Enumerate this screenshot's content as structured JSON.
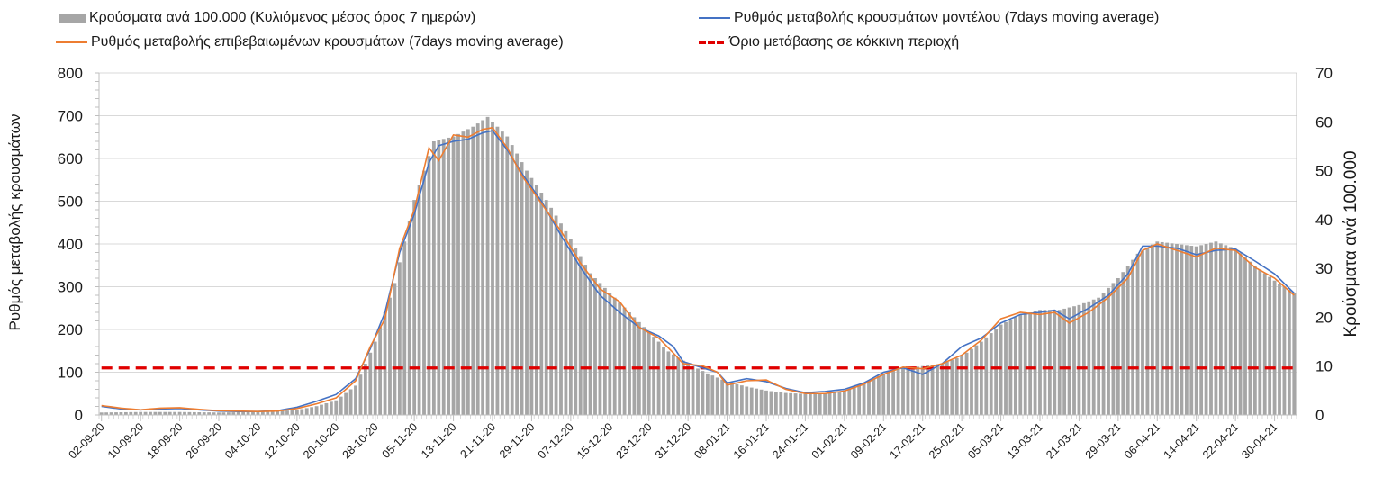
{
  "colors": {
    "bars": "#a6a6a6",
    "model_line": "#4472c4",
    "confirmed_line": "#ed7d31",
    "threshold_line": "#e00000",
    "grid": "#d9d9d9"
  },
  "legend": {
    "bars": "Κρούσματα ανά 100.000 (Κυλιόμενος μέσος όρος 7 ημερών)",
    "model": "Ρυθμός μεταβολής κρουσμάτων μοντέλου (7days moving average)",
    "confirmed": "Ρυθμός μεταβολής επιβεβαιωμένων κρουσμάτων (7days moving average)",
    "threshold": "Όριο μετάβασης σε κόκκινη περιοχή"
  },
  "chart_data": {
    "type": "bar+line",
    "ylabel_left": "Ρυθμός μεταβολής κρουσμάτων",
    "ylabel_right": "Κρούσματα ανά 100.000",
    "ylim_left": [
      0,
      800
    ],
    "ylim_right": [
      0,
      70
    ],
    "yticks_left": [
      "0",
      "100",
      "200",
      "300",
      "400",
      "500",
      "600",
      "700",
      "800"
    ],
    "yticks_right": [
      "0",
      "10",
      "20",
      "30",
      "40",
      "50",
      "60",
      "70"
    ],
    "grid": "horizontal",
    "legend_position": "top",
    "x_start": "2020-09-02",
    "x_end": "2021-05-04",
    "x_tick_labels": [
      "02-09-20",
      "10-09-20",
      "18-09-20",
      "26-09-20",
      "04-10-20",
      "12-10-20",
      "20-10-20",
      "28-10-20",
      "05-11-20",
      "13-11-20",
      "21-11-20",
      "29-11-20",
      "07-12-20",
      "15-12-20",
      "23-12-20",
      "31-12-20",
      "08-01-21",
      "16-01-21",
      "24-01-21",
      "01-02-21",
      "09-02-21",
      "17-02-21",
      "25-02-21",
      "05-03-21",
      "13-03-21",
      "21-03-21",
      "29-03-21",
      "06-04-21",
      "14-04-21",
      "22-04-21",
      "30-04-21"
    ],
    "threshold": 110,
    "bars_keypoints": [
      [
        "2020-09-02",
        0.5
      ],
      [
        "2020-09-10",
        0.6
      ],
      [
        "2020-09-18",
        0.6
      ],
      [
        "2020-09-26",
        0.5
      ],
      [
        "2020-10-04",
        0.6
      ],
      [
        "2020-10-12",
        1.0
      ],
      [
        "2020-10-16",
        1.8
      ],
      [
        "2020-10-20",
        3.0
      ],
      [
        "2020-10-24",
        6.0
      ],
      [
        "2020-10-28",
        15.0
      ],
      [
        "2020-11-01",
        27.0
      ],
      [
        "2020-11-05",
        44.0
      ],
      [
        "2020-11-09",
        56.0
      ],
      [
        "2020-11-13",
        57.0
      ],
      [
        "2020-11-17",
        59.0
      ],
      [
        "2020-11-20",
        61.0
      ],
      [
        "2020-11-24",
        57.0
      ],
      [
        "2020-11-28",
        50.0
      ],
      [
        "2020-12-02",
        44.0
      ],
      [
        "2020-12-07",
        36.0
      ],
      [
        "2020-12-11",
        29.0
      ],
      [
        "2020-12-15",
        25.0
      ],
      [
        "2020-12-19",
        21.0
      ],
      [
        "2020-12-23",
        17.0
      ],
      [
        "2020-12-27",
        13.0
      ],
      [
        "2020-12-31",
        10.5
      ],
      [
        "2021-01-04",
        8.5
      ],
      [
        "2021-01-08",
        6.8
      ],
      [
        "2021-01-12",
        5.8
      ],
      [
        "2021-01-16",
        5.0
      ],
      [
        "2021-01-20",
        4.5
      ],
      [
        "2021-01-24",
        4.3
      ],
      [
        "2021-01-28",
        4.5
      ],
      [
        "2021-02-01",
        5.0
      ],
      [
        "2021-02-05",
        6.5
      ],
      [
        "2021-02-09",
        8.5
      ],
      [
        "2021-02-13",
        9.5
      ],
      [
        "2021-02-17",
        10.0
      ],
      [
        "2021-02-21",
        10.5
      ],
      [
        "2021-02-25",
        12.0
      ],
      [
        "2021-03-01",
        15.0
      ],
      [
        "2021-03-05",
        18.5
      ],
      [
        "2021-03-09",
        20.5
      ],
      [
        "2021-03-13",
        21.5
      ],
      [
        "2021-03-17",
        21.5
      ],
      [
        "2021-03-21",
        22.5
      ],
      [
        "2021-03-25",
        24.0
      ],
      [
        "2021-03-29",
        28.0
      ],
      [
        "2021-04-02",
        33.0
      ],
      [
        "2021-04-06",
        35.5
      ],
      [
        "2021-04-10",
        35.0
      ],
      [
        "2021-04-14",
        34.5
      ],
      [
        "2021-04-18",
        35.5
      ],
      [
        "2021-04-22",
        34.0
      ],
      [
        "2021-04-26",
        30.5
      ],
      [
        "2021-04-30",
        27.5
      ],
      [
        "2021-05-04",
        25.0
      ]
    ],
    "model_keypoints": [
      [
        "2020-09-02",
        20
      ],
      [
        "2020-09-06",
        14
      ],
      [
        "2020-09-10",
        12
      ],
      [
        "2020-09-14",
        14
      ],
      [
        "2020-09-18",
        15
      ],
      [
        "2020-09-22",
        12
      ],
      [
        "2020-09-26",
        9
      ],
      [
        "2020-09-30",
        8
      ],
      [
        "2020-10-04",
        8
      ],
      [
        "2020-10-08",
        10
      ],
      [
        "2020-10-12",
        18
      ],
      [
        "2020-10-16",
        32
      ],
      [
        "2020-10-20",
        48
      ],
      [
        "2020-10-24",
        85
      ],
      [
        "2020-10-27",
        155
      ],
      [
        "2020-10-30",
        240
      ],
      [
        "2020-11-02",
        380
      ],
      [
        "2020-11-05",
        470
      ],
      [
        "2020-11-08",
        590
      ],
      [
        "2020-11-10",
        630
      ],
      [
        "2020-11-13",
        640
      ],
      [
        "2020-11-16",
        645
      ],
      [
        "2020-11-19",
        660
      ],
      [
        "2020-11-21",
        665
      ],
      [
        "2020-11-24",
        620
      ],
      [
        "2020-11-27",
        565
      ],
      [
        "2020-12-01",
        500
      ],
      [
        "2020-12-05",
        420
      ],
      [
        "2020-12-09",
        345
      ],
      [
        "2020-12-13",
        280
      ],
      [
        "2020-12-17",
        240
      ],
      [
        "2020-12-21",
        205
      ],
      [
        "2020-12-25",
        185
      ],
      [
        "2020-12-28",
        160
      ],
      [
        "2020-12-30",
        125
      ],
      [
        "2021-01-03",
        110
      ],
      [
        "2021-01-06",
        100
      ],
      [
        "2021-01-08",
        75
      ],
      [
        "2021-01-12",
        85
      ],
      [
        "2021-01-16",
        78
      ],
      [
        "2021-01-20",
        62
      ],
      [
        "2021-01-24",
        52
      ],
      [
        "2021-01-28",
        55
      ],
      [
        "2021-02-01",
        60
      ],
      [
        "2021-02-05",
        75
      ],
      [
        "2021-02-09",
        100
      ],
      [
        "2021-02-13",
        110
      ],
      [
        "2021-02-17",
        95
      ],
      [
        "2021-02-21",
        120
      ],
      [
        "2021-02-25",
        160
      ],
      [
        "2021-03-01",
        180
      ],
      [
        "2021-03-05",
        215
      ],
      [
        "2021-03-09",
        235
      ],
      [
        "2021-03-13",
        240
      ],
      [
        "2021-03-16",
        245
      ],
      [
        "2021-03-19",
        225
      ],
      [
        "2021-03-23",
        250
      ],
      [
        "2021-03-27",
        280
      ],
      [
        "2021-03-31",
        330
      ],
      [
        "2021-04-03",
        395
      ],
      [
        "2021-04-06",
        395
      ],
      [
        "2021-04-10",
        390
      ],
      [
        "2021-04-14",
        375
      ],
      [
        "2021-04-18",
        385
      ],
      [
        "2021-04-22",
        388
      ],
      [
        "2021-04-26",
        360
      ],
      [
        "2021-04-30",
        330
      ],
      [
        "2021-05-04",
        285
      ]
    ],
    "confirmed_keypoints": [
      [
        "2020-09-02",
        22
      ],
      [
        "2020-09-06",
        16
      ],
      [
        "2020-09-10",
        12
      ],
      [
        "2020-09-14",
        16
      ],
      [
        "2020-09-18",
        17
      ],
      [
        "2020-09-22",
        13
      ],
      [
        "2020-09-26",
        10
      ],
      [
        "2020-09-30",
        9
      ],
      [
        "2020-10-04",
        8
      ],
      [
        "2020-10-08",
        9
      ],
      [
        "2020-10-12",
        15
      ],
      [
        "2020-10-16",
        26
      ],
      [
        "2020-10-20",
        40
      ],
      [
        "2020-10-24",
        80
      ],
      [
        "2020-10-27",
        160
      ],
      [
        "2020-10-30",
        225
      ],
      [
        "2020-11-02",
        390
      ],
      [
        "2020-11-05",
        480
      ],
      [
        "2020-11-08",
        625
      ],
      [
        "2020-11-10",
        595
      ],
      [
        "2020-11-13",
        655
      ],
      [
        "2020-11-16",
        650
      ],
      [
        "2020-11-19",
        668
      ],
      [
        "2020-11-21",
        672
      ],
      [
        "2020-11-24",
        625
      ],
      [
        "2020-11-27",
        560
      ],
      [
        "2020-12-01",
        495
      ],
      [
        "2020-12-05",
        430
      ],
      [
        "2020-12-09",
        355
      ],
      [
        "2020-12-13",
        295
      ],
      [
        "2020-12-17",
        265
      ],
      [
        "2020-12-21",
        205
      ],
      [
        "2020-12-25",
        180
      ],
      [
        "2020-12-28",
        145
      ],
      [
        "2020-12-30",
        120
      ],
      [
        "2021-01-03",
        115
      ],
      [
        "2021-01-06",
        100
      ],
      [
        "2021-01-08",
        70
      ],
      [
        "2021-01-12",
        80
      ],
      [
        "2021-01-16",
        82
      ],
      [
        "2021-01-20",
        60
      ],
      [
        "2021-01-24",
        50
      ],
      [
        "2021-01-28",
        50
      ],
      [
        "2021-02-01",
        56
      ],
      [
        "2021-02-05",
        72
      ],
      [
        "2021-02-09",
        95
      ],
      [
        "2021-02-13",
        112
      ],
      [
        "2021-02-17",
        108
      ],
      [
        "2021-02-21",
        120
      ],
      [
        "2021-02-25",
        140
      ],
      [
        "2021-03-01",
        175
      ],
      [
        "2021-03-05",
        225
      ],
      [
        "2021-03-09",
        240
      ],
      [
        "2021-03-13",
        235
      ],
      [
        "2021-03-16",
        240
      ],
      [
        "2021-03-19",
        215
      ],
      [
        "2021-03-23",
        240
      ],
      [
        "2021-03-27",
        275
      ],
      [
        "2021-03-31",
        320
      ],
      [
        "2021-04-03",
        385
      ],
      [
        "2021-04-06",
        400
      ],
      [
        "2021-04-10",
        385
      ],
      [
        "2021-04-14",
        370
      ],
      [
        "2021-04-18",
        390
      ],
      [
        "2021-04-22",
        385
      ],
      [
        "2021-04-26",
        345
      ],
      [
        "2021-04-30",
        320
      ],
      [
        "2021-05-04",
        280
      ]
    ]
  }
}
